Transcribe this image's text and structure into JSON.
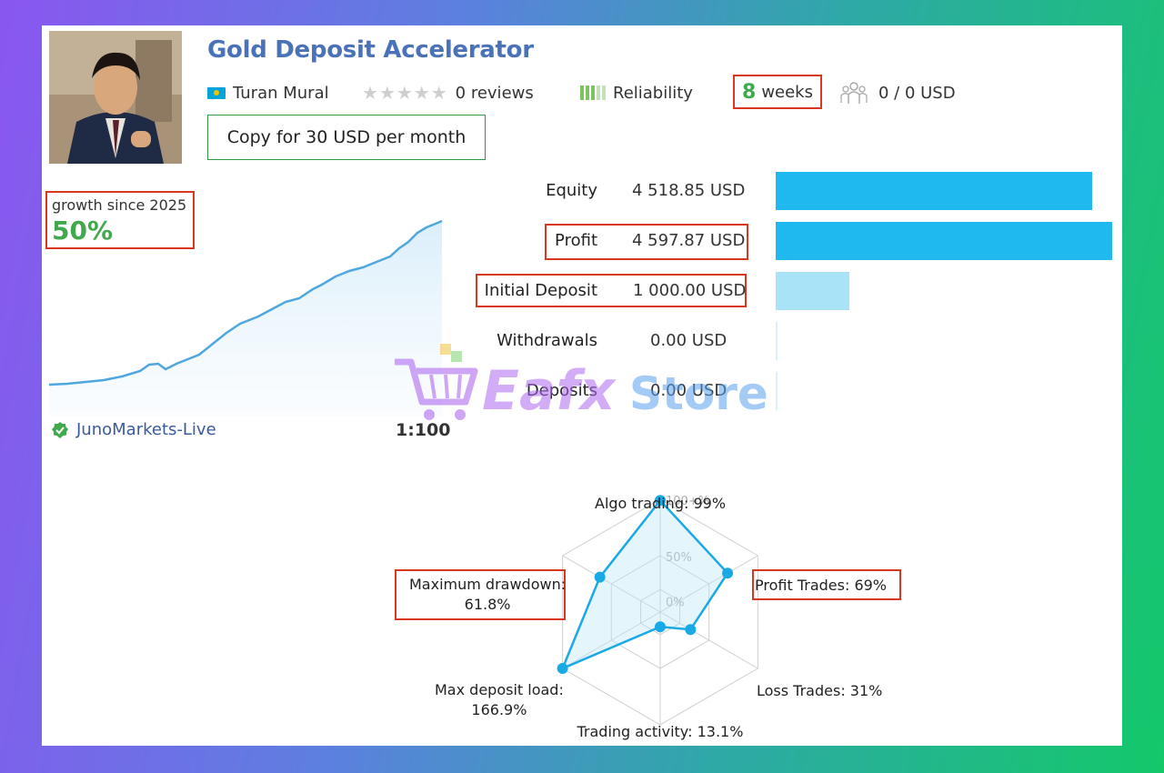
{
  "signal": {
    "title": "Gold Deposit Accelerator",
    "author": "Turan Mural",
    "reviews": "0 reviews",
    "reliability_label": "Reliability",
    "weeks_number": "8",
    "weeks_unit": "weeks",
    "subscribers": "0 / 0 USD",
    "copy_button": "Copy for 30 USD per month"
  },
  "growth": {
    "label": "growth since 2025",
    "value": "50%",
    "broker": "JunoMarkets-Live",
    "leverage": "1:100"
  },
  "stats": [
    {
      "label": "Equity",
      "value": "4 518.85 USD",
      "bar_fraction": 0.94,
      "bar_color": "#1fb8ef"
    },
    {
      "label": "Profit",
      "value": "4 597.87 USD",
      "bar_fraction": 1.0,
      "bar_color": "#1fb8ef"
    },
    {
      "label": "Initial Deposit",
      "value": "1 000.00 USD",
      "bar_fraction": 0.22,
      "bar_color": "#a8e3f8"
    },
    {
      "label": "Withdrawals",
      "value": "0.00 USD",
      "bar_fraction": 0.0,
      "bar_color": "#a8e3f8"
    },
    {
      "label": "Deposits",
      "value": "0.00 USD",
      "bar_fraction": 0.0,
      "bar_color": "#a8e3f8"
    }
  ],
  "radar": {
    "tick_labels": [
      "100+%",
      "50%",
      "0%"
    ],
    "axes": [
      {
        "label": "Algo trading: 99%",
        "value": 0.99
      },
      {
        "label": "Profit Trades: 69%",
        "value": 0.69
      },
      {
        "label": "Loss Trades: 31%",
        "value": 0.31
      },
      {
        "label": "Trading activity: 13.1%",
        "value": 0.131
      },
      {
        "label_line1": "Max deposit load:",
        "label_line2": "166.9%",
        "value": 1.0
      },
      {
        "label_line1": "Maximum drawdown:",
        "label_line2": "61.8%",
        "value": 0.618
      }
    ]
  },
  "watermark": {
    "text_a": "Eafx",
    "text_b": "Store"
  },
  "colors": {
    "accent": "#4a72b8",
    "green": "#3fa94b",
    "highlight": "#d9381e",
    "bar": "#1fb8ef"
  }
}
